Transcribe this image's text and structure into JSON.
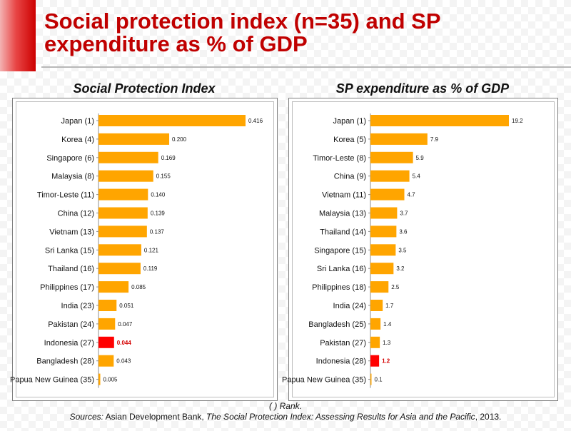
{
  "title": "Social protection index (n=35) and SP expenditure as % of GDP",
  "footer": {
    "note": "( ) Rank.",
    "source_label": "Sources:",
    "source_text_1": " Asian Development Bank, ",
    "source_title": "The Social Protection Index: Assessing Results for Asia and the Pacific",
    "source_text_2": ", 2013."
  },
  "colors": {
    "bar": "#ffa500",
    "highlight": "#ff0000",
    "title": "#c00000"
  },
  "chart_data": [
    {
      "type": "bar",
      "orientation": "horizontal",
      "title": "Social Protection Index",
      "xlim": [
        0,
        0.45
      ],
      "highlight_category": "Indonesia (27)",
      "categories": [
        "Japan (1)",
        "Korea (4)",
        "Singapore (6)",
        "Malaysia (8)",
        "Timor-Leste (11)",
        "China (12)",
        "Vietnam (13)",
        "Sri Lanka (15)",
        "Thailand (16)",
        "Philippines (17)",
        "India (23)",
        "Pakistan (24)",
        "Indonesia (27)",
        "Bangladesh (28)",
        "Papua New Guinea (35)"
      ],
      "values": [
        0.416,
        0.2,
        0.169,
        0.155,
        0.14,
        0.139,
        0.137,
        0.121,
        0.119,
        0.085,
        0.051,
        0.047,
        0.044,
        0.043,
        0.005
      ],
      "value_labels": [
        "0.416",
        "0.200",
        "0.169",
        "0.155",
        "0.140",
        "0.139",
        "0.137",
        "0.121",
        "0.119",
        "0.085",
        "0.051",
        "0.047",
        "0.044",
        "0.043",
        "0.005"
      ]
    },
    {
      "type": "bar",
      "orientation": "horizontal",
      "title": "SP expenditure as % of GDP",
      "xlim": [
        0,
        21
      ],
      "highlight_category": "Indonesia (28)",
      "categories": [
        "Japan (1)",
        "Korea (5)",
        "Timor-Leste (8)",
        "China (9)",
        "Vietnam (11)",
        "Malaysia (13)",
        "Thailand (14)",
        "Singapore (15)",
        "Sri Lanka (16)",
        "Philippines (18)",
        "India (24)",
        "Bangladesh (25)",
        "Pakistan (27)",
        "Indonesia (28)",
        "Papua New Guinea (35)"
      ],
      "values": [
        19.2,
        7.9,
        5.9,
        5.4,
        4.7,
        3.7,
        3.6,
        3.5,
        3.2,
        2.5,
        1.7,
        1.4,
        1.3,
        1.2,
        0.1
      ],
      "value_labels": [
        "19.2",
        "7.9",
        "5.9",
        "5.4",
        "4.7",
        "3.7",
        "3.6",
        "3.5",
        "3.2",
        "2.5",
        "1.7",
        "1.4",
        "1.3",
        "1.2",
        "0.1"
      ]
    }
  ]
}
